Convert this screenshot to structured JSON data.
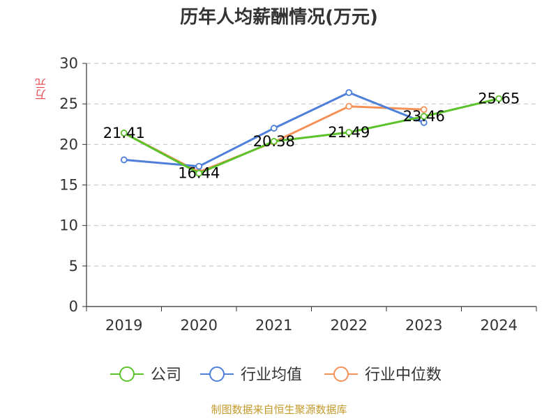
{
  "title": "历年人均薪酬情况(万元)",
  "source": "制图数据来自恒生聚源数据库",
  "chart_data": {
    "type": "line",
    "title": "历年人均薪酬情况(万元)",
    "ylabel": "万元",
    "categories": [
      "2019",
      "2020",
      "2021",
      "2022",
      "2023",
      "2024"
    ],
    "ylim": [
      0,
      30
    ],
    "yticks": [
      0,
      5,
      10,
      15,
      20,
      25,
      30
    ],
    "grid": true,
    "legend_position": "bottom",
    "series": [
      {
        "name": "公司",
        "color": "#5cc22a",
        "values": [
          21.41,
          16.44,
          20.38,
          21.49,
          23.46,
          25.65
        ],
        "labels": [
          "21.41",
          "16.44",
          "20.38",
          "21.49",
          "23.46",
          "25.65"
        ]
      },
      {
        "name": "行业均值",
        "color": "#4e7fd9",
        "values": [
          18.1,
          17.3,
          22.0,
          26.4,
          22.7,
          null
        ]
      },
      {
        "name": "行业中位数",
        "color": "#f39157",
        "values": [
          21.4,
          16.6,
          20.3,
          24.7,
          24.3,
          null
        ]
      }
    ]
  }
}
